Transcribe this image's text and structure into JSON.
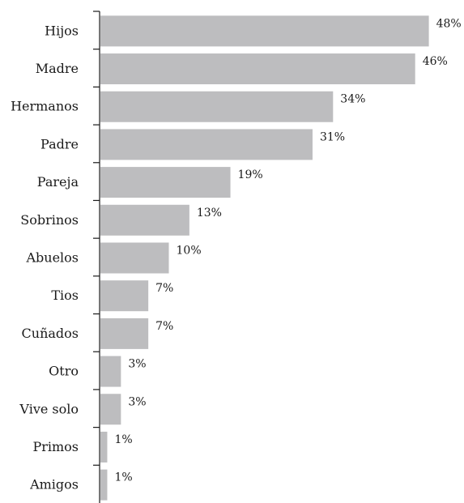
{
  "chart_data": {
    "type": "bar",
    "orientation": "horizontal",
    "categories": [
      "Hijos",
      "Madre",
      "Hermanos",
      "Padre",
      "Pareja",
      "Sobrinos",
      "Abuelos",
      "Tios",
      "Cuñados",
      "Otro",
      "Vive solo",
      "Primos",
      "Amigos"
    ],
    "values": [
      48,
      46,
      34,
      31,
      19,
      13,
      10,
      7,
      7,
      3,
      3,
      1,
      1
    ],
    "value_labels": [
      "48%",
      "46%",
      "34%",
      "31%",
      "19%",
      "13%",
      "10%",
      "7%",
      "7%",
      "3%",
      "3%",
      "1%",
      "1%"
    ],
    "unit": "%",
    "bar_color": "#bdbdbf",
    "axis_color": "#1a1a1a",
    "grid": false,
    "legend": "none"
  }
}
